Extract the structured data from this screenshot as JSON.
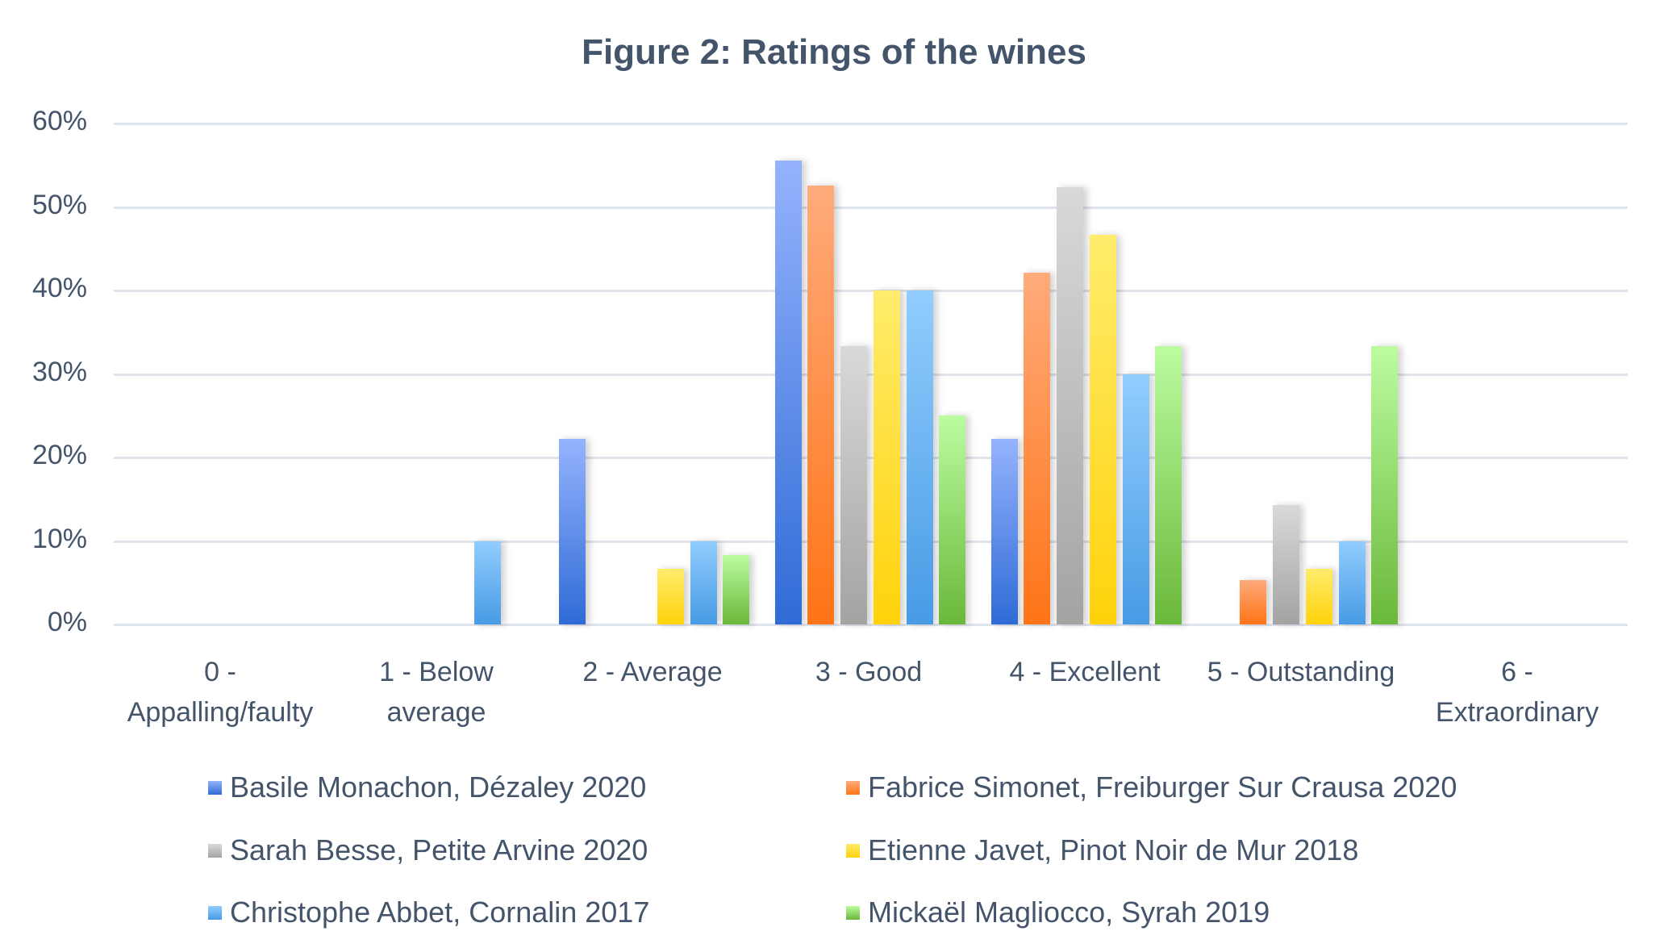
{
  "title": "Figure 2: Ratings of the wines",
  "y_ticks": [
    "60%",
    "50%",
    "40%",
    "30%",
    "20%",
    "10%",
    "0%"
  ],
  "x_labels": [
    {
      "line1": "0 -",
      "line2": "Appalling/faulty"
    },
    {
      "line1": "1 - Below",
      "line2": "average"
    },
    {
      "line1": "2 - Average",
      "line2": ""
    },
    {
      "line1": "3 - Good",
      "line2": ""
    },
    {
      "line1": "4 - Excellent",
      "line2": ""
    },
    {
      "line1": "5 - Outstanding",
      "line2": ""
    },
    {
      "line1": "6 -",
      "line2": "Extraordinary"
    }
  ],
  "legend": [
    {
      "label": "Basile Monachon, Dézaley 2020",
      "color_top": "#95b3fd",
      "color_bottom": "#2f6bd6"
    },
    {
      "label": "Fabrice Simonet, Freiburger Sur Crausa 2020",
      "color_top": "#ffab7b",
      "color_bottom": "#ff7416"
    },
    {
      "label": "Sarah Besse, Petite Arvine 2020",
      "color_top": "#d9d9d9",
      "color_bottom": "#a3a3a3"
    },
    {
      "label": "Etienne Javet, Pinot Noir de Mur 2018",
      "color_top": "#ffec6c",
      "color_bottom": "#ffd20a"
    },
    {
      "label": "Christophe Abbet, Cornalin 2017",
      "color_top": "#92cdfe",
      "color_bottom": "#479be5"
    },
    {
      "label": "Mickaël Magliocco, Syrah 2019",
      "color_top": "#bcfca0",
      "color_bottom": "#6ab83a"
    }
  ],
  "chart_data": {
    "type": "bar",
    "title": "Figure 2: Ratings of the wines",
    "xlabel": "",
    "ylabel": "",
    "ylim": [
      0,
      60
    ],
    "y_unit": "%",
    "grid": true,
    "legend_position": "bottom",
    "categories": [
      "0 - Appalling/faulty",
      "1 - Below average",
      "2 - Average",
      "3 - Good",
      "4 - Excellent",
      "5 - Outstanding",
      "6 - Extraordinary"
    ],
    "series": [
      {
        "name": "Basile Monachon, Dézaley 2020",
        "values": [
          0,
          0,
          22.2,
          55.6,
          22.2,
          0,
          0
        ]
      },
      {
        "name": "Fabrice Simonet, Freiburger Sur Crausa 2020",
        "values": [
          0,
          0,
          0,
          52.6,
          42.1,
          5.3,
          0
        ]
      },
      {
        "name": "Sarah Besse, Petite Arvine 2020",
        "values": [
          0,
          0,
          0,
          33.3,
          52.4,
          14.3,
          0
        ]
      },
      {
        "name": "Etienne Javet, Pinot Noir de Mur 2018",
        "values": [
          0,
          0,
          6.7,
          40.0,
          46.7,
          6.7,
          0
        ]
      },
      {
        "name": "Christophe Abbet, Cornalin 2017",
        "values": [
          0,
          10.0,
          10.0,
          40.0,
          30.0,
          10.0,
          0
        ]
      },
      {
        "name": "Mickaël Magliocco, Syrah 2019",
        "values": [
          0,
          0,
          8.3,
          25.0,
          33.3,
          33.3,
          0
        ]
      }
    ]
  }
}
